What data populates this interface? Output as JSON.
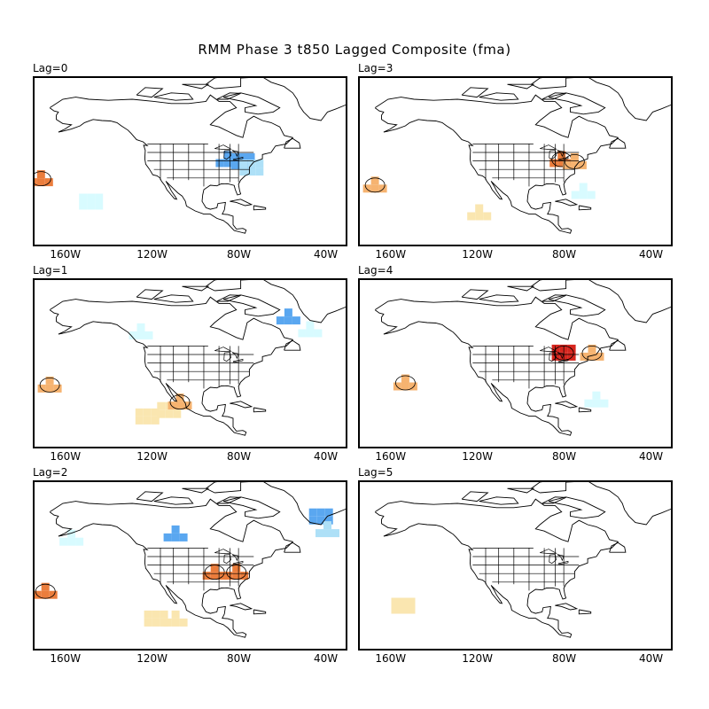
{
  "figure": {
    "title": "RMM Phase 3 t850 Lagged Composite (fma)"
  },
  "colors": {
    "coast": "#000000",
    "warm_light": "#fae6b0",
    "warm_mid": "#f6b370",
    "warm_strong": "#eb7d3c",
    "warm_dark": "#d7261e",
    "cool_light": "#d8fbff",
    "cool_mid": "#aee0f7",
    "cool_strong": "#5aa7f0"
  },
  "x_ticks": [
    "160W",
    "120W",
    "80W",
    "40W"
  ],
  "panels": [
    {
      "label": "Lag=0",
      "anomalies": [
        {
          "lon": -172,
          "lat": 31,
          "kind": "warm_strong"
        },
        {
          "lon": -86,
          "lat": 40,
          "kind": "cool_strong"
        },
        {
          "lon": -79,
          "lat": 39,
          "kind": "cool_strong"
        },
        {
          "lon": -75,
          "lat": 36,
          "kind": "cool_mid"
        },
        {
          "lon": -149,
          "lat": 20,
          "kind": "cool_light"
        }
      ]
    },
    {
      "label": "Lag=1",
      "anomalies": [
        {
          "lon": -168,
          "lat": 29,
          "kind": "warm_mid"
        },
        {
          "lon": -123,
          "lat": 14,
          "kind": "warm_light"
        },
        {
          "lon": -113,
          "lat": 17,
          "kind": "warm_light"
        },
        {
          "lon": -108,
          "lat": 21,
          "kind": "warm_mid"
        },
        {
          "lon": -58,
          "lat": 61,
          "kind": "cool_strong"
        },
        {
          "lon": -48,
          "lat": 55,
          "kind": "cool_light"
        },
        {
          "lon": -126,
          "lat": 54,
          "kind": "cool_light"
        }
      ]
    },
    {
      "label": "Lag=2",
      "anomalies": [
        {
          "lon": -170,
          "lat": 27,
          "kind": "warm_strong"
        },
        {
          "lon": -110,
          "lat": 14,
          "kind": "warm_light"
        },
        {
          "lon": -119,
          "lat": 14,
          "kind": "warm_light"
        },
        {
          "lon": -92,
          "lat": 36,
          "kind": "warm_strong"
        },
        {
          "lon": -82,
          "lat": 36,
          "kind": "warm_strong"
        },
        {
          "lon": -110,
          "lat": 54,
          "kind": "cool_strong"
        },
        {
          "lon": -43,
          "lat": 62,
          "kind": "cool_strong"
        },
        {
          "lon": -40,
          "lat": 56,
          "kind": "cool_mid"
        },
        {
          "lon": -158,
          "lat": 52,
          "kind": "cool_light"
        }
      ]
    },
    {
      "label": "Lag=3",
      "anomalies": [
        {
          "lon": -168,
          "lat": 28,
          "kind": "warm_mid"
        },
        {
          "lon": -82,
          "lat": 40,
          "kind": "warm_strong"
        },
        {
          "lon": -76,
          "lat": 39,
          "kind": "warm_mid"
        },
        {
          "lon": -120,
          "lat": 15,
          "kind": "warm_light"
        },
        {
          "lon": -72,
          "lat": 25,
          "kind": "cool_light"
        }
      ]
    },
    {
      "label": "Lag=4",
      "anomalies": [
        {
          "lon": -154,
          "lat": 30,
          "kind": "warm_mid"
        },
        {
          "lon": -81,
          "lat": 44,
          "kind": "warm_dark"
        },
        {
          "lon": -68,
          "lat": 44,
          "kind": "warm_mid"
        },
        {
          "lon": -66,
          "lat": 22,
          "kind": "cool_light"
        }
      ]
    },
    {
      "label": "Lag=5",
      "anomalies": [
        {
          "lon": -155,
          "lat": 20,
          "kind": "warm_light"
        }
      ]
    }
  ]
}
